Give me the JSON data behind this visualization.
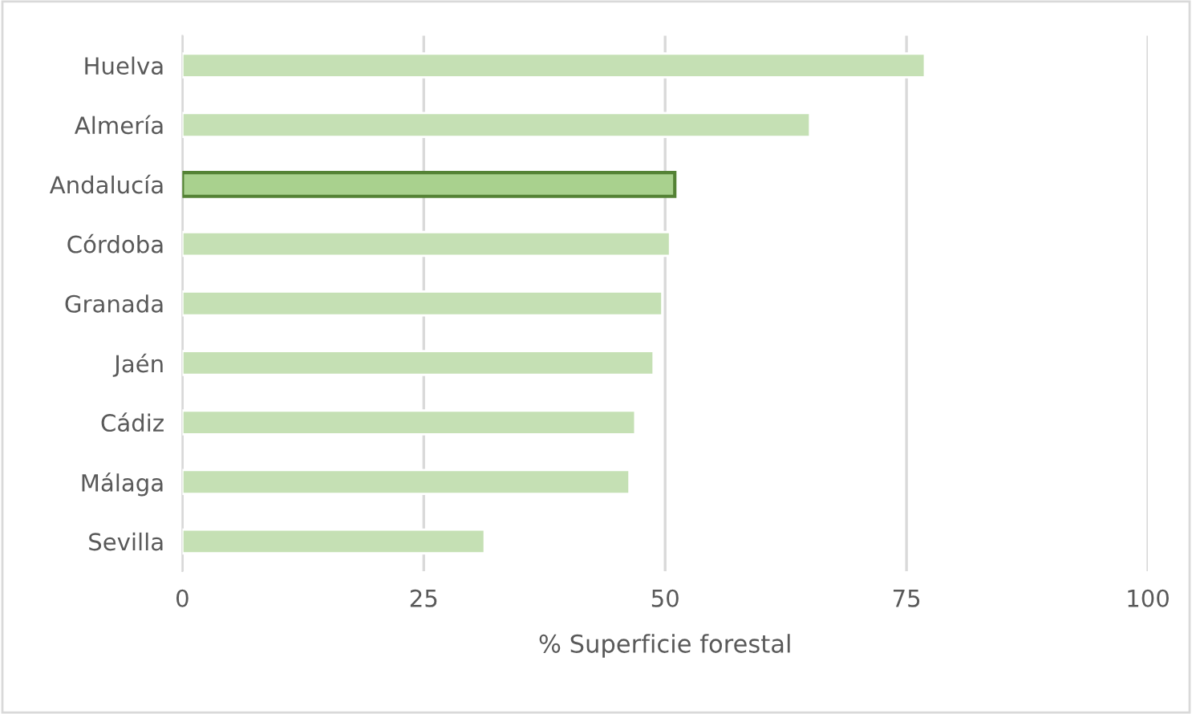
{
  "chart_data": {
    "type": "bar",
    "orientation": "horizontal",
    "xlabel": "% Superficie forestal",
    "categories": [
      "Huelva",
      "Almería",
      "Andalucía",
      "Córdoba",
      "Granada",
      "Jaén",
      "Cádiz",
      "Málaga",
      "Sevilla"
    ],
    "values": [
      76.9,
      65.0,
      51.0,
      50.5,
      49.7,
      48.8,
      46.9,
      46.3,
      31.3
    ],
    "colors": [
      "#c5e0b4",
      "#c5e0b4",
      "#a9d18e",
      "#c5e0b4",
      "#c5e0b4",
      "#c5e0b4",
      "#c5e0b4",
      "#c5e0b4",
      "#c5e0b4"
    ],
    "xlim": [
      0,
      100
    ],
    "xticks": [
      0,
      25,
      50,
      75,
      100
    ],
    "grid": "x"
  }
}
